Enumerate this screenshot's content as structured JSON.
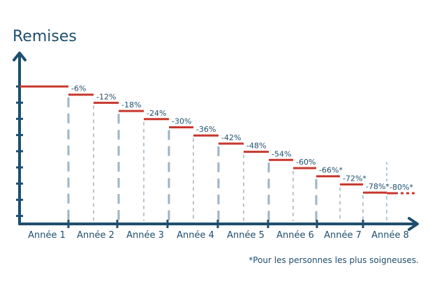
{
  "chart_data": {
    "type": "step",
    "title": "Remises",
    "footnote": "*Pour les personnes les plus soigneuses.",
    "x_axis": {
      "categories": [
        "Année 1",
        "Année 2",
        "Année 3",
        "Année 4",
        "Année 5",
        "Année 6",
        "Année 7",
        "Année 8"
      ]
    },
    "y_axis": {
      "ticks": 9,
      "label": ""
    },
    "steps": [
      {
        "value": 0,
        "label": ""
      },
      {
        "value": -6,
        "label": "-6%"
      },
      {
        "value": -12,
        "label": "-12%"
      },
      {
        "value": -18,
        "label": "-18%"
      },
      {
        "value": -24,
        "label": "-24%"
      },
      {
        "value": -30,
        "label": "-30%"
      },
      {
        "value": -36,
        "label": "-36%"
      },
      {
        "value": -42,
        "label": "-42%"
      },
      {
        "value": -48,
        "label": "-48%"
      },
      {
        "value": -54,
        "label": "-54%"
      },
      {
        "value": -60,
        "label": "-60%"
      },
      {
        "value": -66,
        "label": "-66%*"
      },
      {
        "value": -72,
        "label": "-72%*"
      },
      {
        "value": -78,
        "label": "-78%*"
      },
      {
        "value": -80,
        "label": "-80%*"
      }
    ],
    "colors": {
      "axis": "#1f4e6e",
      "step": "#c8372d",
      "guide": "#9db4c6",
      "text": "#1f4e6e"
    },
    "legend": "none",
    "grid": false
  }
}
